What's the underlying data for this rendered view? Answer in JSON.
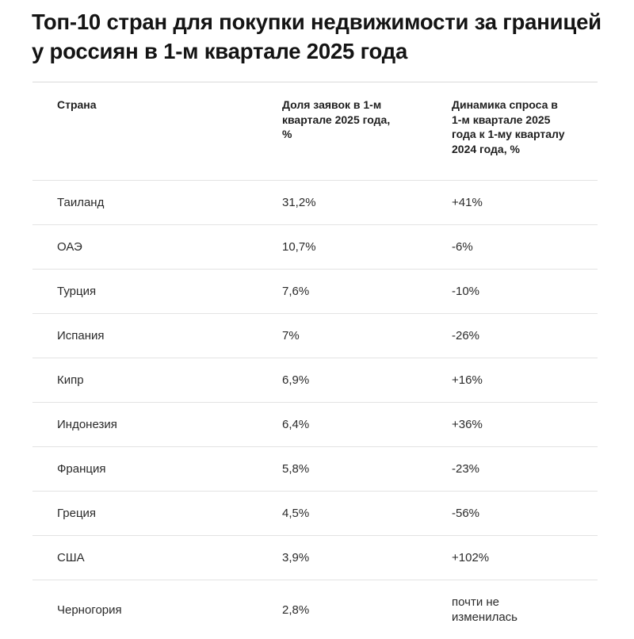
{
  "title": "Топ-10 стран для покупки недвижимости за границей у россиян в 1-м квартале 2025 года",
  "table": {
    "headers": {
      "country": "Страна",
      "share": "Доля заявок в 1-м квартале 2025 года, %",
      "dynamics": "Динамика спроса в 1-м квартале 2025 года к 1-му кварталу 2024 года, %"
    },
    "rows": [
      {
        "country": "Таиланд",
        "share": "31,2%",
        "dynamics": "+41%"
      },
      {
        "country": "ОАЭ",
        "share": "10,7%",
        "dynamics": "-6%"
      },
      {
        "country": "Турция",
        "share": "7,6%",
        "dynamics": "-10%"
      },
      {
        "country": "Испания",
        "share": "7%",
        "dynamics": "-26%"
      },
      {
        "country": "Кипр",
        "share": "6,9%",
        "dynamics": "+16%"
      },
      {
        "country": "Индонезия",
        "share": "6,4%",
        "dynamics": "+36%"
      },
      {
        "country": "Франция",
        "share": "5,8%",
        "dynamics": "-23%"
      },
      {
        "country": "Греция",
        "share": "4,5%",
        "dynamics": "-56%"
      },
      {
        "country": "США",
        "share": "3,9%",
        "dynamics": "+102%"
      },
      {
        "country": "Черногория",
        "share": "2,8%",
        "dynamics": "почти не изменилась"
      }
    ]
  }
}
